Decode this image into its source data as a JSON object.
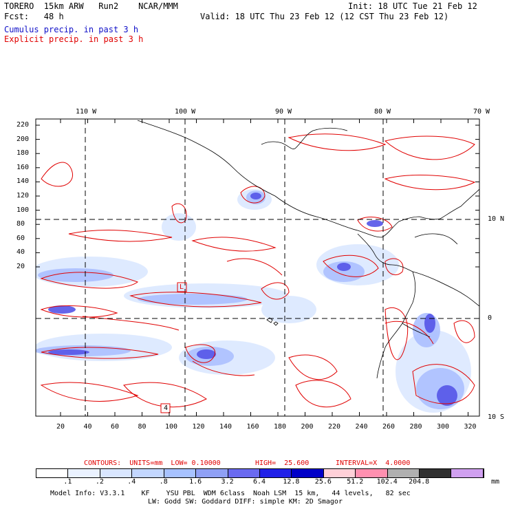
{
  "header": {
    "model": "TORERO  15km ARW   Run2    NCAR/MMM",
    "init": "Init: 18 UTC Tue 21 Feb 12",
    "fcst": "Fcst:   48 h",
    "valid": "Valid: 18 UTC Thu 23 Feb 12 (12 CST Thu 23 Feb 12)",
    "legend_cumulus": "Cumulus precip. in past 3 h",
    "legend_explicit": "Explicit precip. in past 3 h"
  },
  "map": {
    "lon_labels": [
      "110 W",
      "100 W",
      "90 W",
      "80 W",
      "70 W"
    ],
    "lat_labels": [
      "10 N",
      "0",
      "10 S"
    ],
    "y_ticks": [
      "220",
      "200",
      "180",
      "160",
      "140",
      "120",
      "100",
      "80",
      "60",
      "40",
      "20"
    ],
    "x_ticks": [
      "20",
      "40",
      "60",
      "80",
      "100",
      "120",
      "140",
      "160",
      "180",
      "200",
      "220",
      "240",
      "260",
      "280",
      "300",
      "320"
    ],
    "box_labels": [
      "L",
      "4"
    ]
  },
  "contours_line": {
    "contours": "CONTOURS:  UNITS=mm  LOW= 0.10000",
    "high": "HIGH=  25.600",
    "interval": "INTERVAL=X  4.0000"
  },
  "colorbar": {
    "labels": [
      ".1",
      ".2",
      ".4",
      ".8",
      "1.6",
      "3.2",
      "6.4",
      "12.8",
      "25.6",
      "51.2",
      "102.4",
      "204.8"
    ],
    "unit": "mm",
    "colors": [
      "#ffffff",
      "#eaf2ff",
      "#d9e6ff",
      "#c3d7ff",
      "#a7c2ff",
      "#8fa0f5",
      "#6a6af0",
      "#2020e8",
      "#0000c8",
      "#ffd0d8",
      "#ff90b0",
      "#b0b0b0",
      "#303030",
      "#d0a0f0"
    ]
  },
  "footer": {
    "line1": "Model Info: V3.3.1    KF    YSU PBL  WDM 6class  Noah LSM  15 km,   44 levels,   82 sec",
    "line2": "LW: Godd SW: Goddard DIFF: simple KM: 2D Smagor"
  }
}
